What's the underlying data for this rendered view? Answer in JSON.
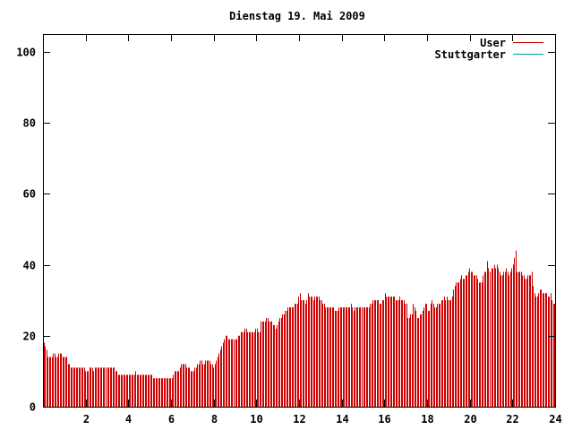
{
  "chart_data": {
    "type": "bar",
    "title": "Dienstag 19. Mai 2009",
    "xlabel": "",
    "ylabel": "",
    "xlim": [
      0,
      24
    ],
    "ylim": [
      0,
      105
    ],
    "x_ticks": [
      2,
      4,
      6,
      8,
      10,
      12,
      14,
      16,
      18,
      20,
      22,
      24
    ],
    "x_tick_labels": [
      "2",
      "4",
      "6",
      "8",
      "10",
      "12",
      "14",
      "16",
      "18",
      "20",
      "22",
      "24"
    ],
    "y_ticks": [
      0,
      20,
      40,
      60,
      80,
      100
    ],
    "y_tick_labels": [
      "0",
      "20",
      "40",
      "60",
      "80",
      "100"
    ],
    "grid": false,
    "legend_position": "top-right",
    "series": [
      {
        "name": "User",
        "color": "#cc0000",
        "values": [
          18,
          17,
          16,
          14,
          14,
          14,
          14,
          15,
          15,
          14,
          14,
          15,
          15,
          15,
          14,
          14,
          14,
          14,
          12,
          12,
          11,
          11,
          11,
          11,
          11,
          11,
          11,
          11,
          11,
          11,
          11,
          10,
          10,
          10,
          11,
          11,
          11,
          10,
          11,
          11,
          11,
          11,
          11,
          11,
          11,
          11,
          11,
          11,
          11,
          11,
          11,
          11,
          11,
          10,
          10,
          9,
          9,
          9,
          9,
          9,
          9,
          9,
          9,
          9,
          9,
          9,
          9,
          9,
          10,
          9,
          9,
          9,
          9,
          9,
          9,
          9,
          9,
          9,
          9,
          9,
          9,
          8,
          8,
          8,
          8,
          8,
          8,
          8,
          8,
          8,
          8,
          8,
          8,
          8,
          8,
          8,
          9,
          10,
          10,
          10,
          10,
          11,
          12,
          12,
          12,
          12,
          11,
          11,
          11,
          10,
          10,
          10,
          11,
          11,
          12,
          12,
          13,
          13,
          12,
          12,
          13,
          13,
          13,
          13,
          12,
          12,
          11,
          12,
          13,
          14,
          15,
          16,
          17,
          18,
          19,
          20,
          20,
          19,
          19,
          19,
          19,
          19,
          19,
          19,
          20,
          20,
          21,
          21,
          21,
          22,
          22,
          21,
          21,
          21,
          21,
          21,
          21,
          22,
          22,
          21,
          21,
          24,
          24,
          24,
          24,
          25,
          25,
          24,
          24,
          24,
          23,
          23,
          22,
          23,
          24,
          25,
          25,
          26,
          26,
          27,
          27,
          28,
          28,
          28,
          28,
          28,
          29,
          29,
          29,
          31,
          32,
          30,
          30,
          30,
          29,
          30,
          32,
          31,
          31,
          31,
          30,
          31,
          31,
          31,
          31,
          30,
          30,
          29,
          29,
          28,
          28,
          28,
          28,
          28,
          28,
          28,
          27,
          27,
          27,
          28,
          28,
          28,
          28,
          28,
          28,
          28,
          28,
          28,
          29,
          28,
          27,
          28,
          28,
          28,
          28,
          28,
          28,
          28,
          28,
          28,
          28,
          28,
          29,
          29,
          30,
          30,
          30,
          30,
          30,
          29,
          29,
          30,
          30,
          32,
          31,
          31,
          31,
          31,
          31,
          31,
          31,
          30,
          30,
          30,
          31,
          30,
          30,
          30,
          29,
          29,
          25,
          25,
          26,
          26,
          29,
          28,
          27,
          25,
          25,
          26,
          26,
          27,
          28,
          29,
          29,
          27,
          27,
          29,
          30,
          29,
          28,
          28,
          29,
          29,
          29,
          30,
          30,
          31,
          30,
          31,
          30,
          30,
          30,
          31,
          33,
          34,
          35,
          35,
          35,
          36,
          37,
          36,
          36,
          37,
          37,
          38,
          39,
          38,
          38,
          37,
          37,
          37,
          36,
          35,
          35,
          35,
          37,
          38,
          38,
          41,
          39,
          38,
          39,
          39,
          40,
          39,
          40,
          39,
          38,
          37,
          37,
          38,
          38,
          39,
          38,
          37,
          38,
          39,
          40,
          42,
          44,
          38,
          38,
          38,
          38,
          37,
          37,
          36,
          36,
          37,
          37,
          37,
          38,
          34,
          32,
          31,
          31,
          32,
          33,
          33,
          32,
          32,
          32,
          32,
          31,
          31,
          32,
          30,
          29,
          29
        ]
      },
      {
        "name": "Stuttgarter",
        "color": "#00a0a0",
        "values": []
      }
    ]
  }
}
